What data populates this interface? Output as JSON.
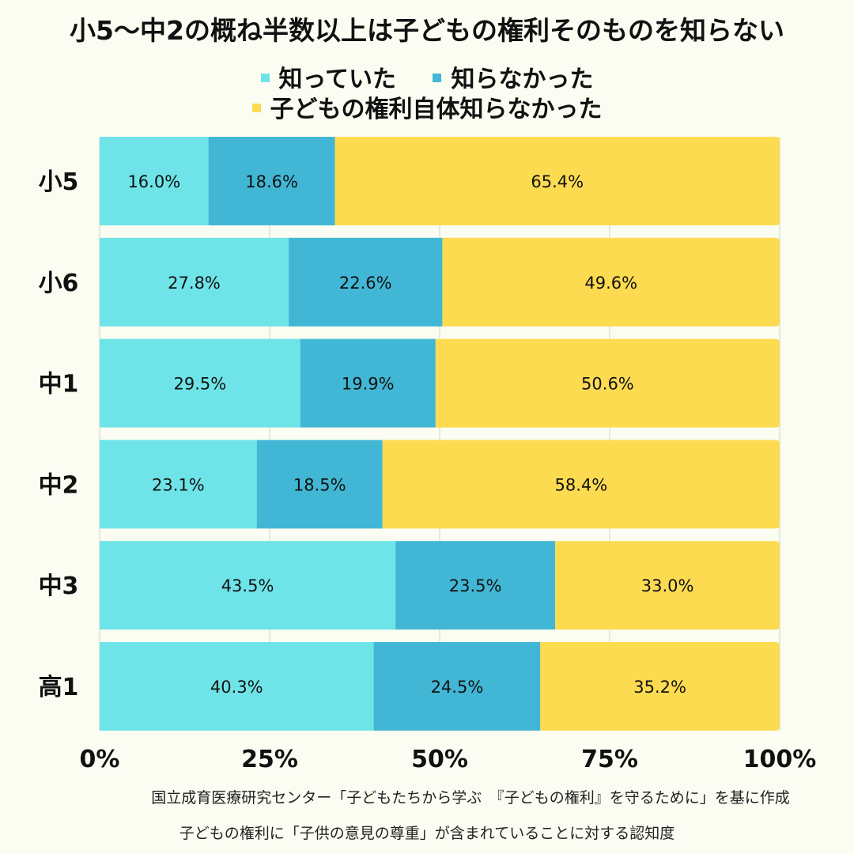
{
  "chart_data": {
    "type": "bar",
    "orientation": "horizontal",
    "stacked": true,
    "title": "小5〜中2の概ね半数以上は子どもの権利そのものを知らない",
    "categories": [
      "小5",
      "小6",
      "中1",
      "中2",
      "中3",
      "高1"
    ],
    "series": [
      {
        "name": "知っていた",
        "color": "#6ee4e8",
        "values": [
          16.0,
          27.8,
          29.5,
          23.1,
          43.5,
          40.3
        ]
      },
      {
        "name": "知らなかった",
        "color": "#42b7d5",
        "values": [
          18.6,
          22.6,
          19.9,
          18.5,
          23.5,
          24.5
        ]
      },
      {
        "name": "子どもの権利自体知らなかった",
        "color": "#fddb51",
        "values": [
          65.4,
          49.6,
          50.6,
          58.4,
          33.0,
          35.2
        ]
      }
    ],
    "value_format": "{v}%",
    "xlim": [
      0,
      100
    ],
    "xticks": [
      "0%",
      "25%",
      "50%",
      "75%",
      "100%"
    ],
    "grid": "vertical",
    "legend_position": "top"
  },
  "notes": {
    "source": "国立成育医療研究センター「子どもたちから学ぶ　『子どもの権利』を守るために」を基に作成",
    "subtitle": "子どもの権利に「子供の意見の尊重」が含まれていることに対する認知度"
  }
}
